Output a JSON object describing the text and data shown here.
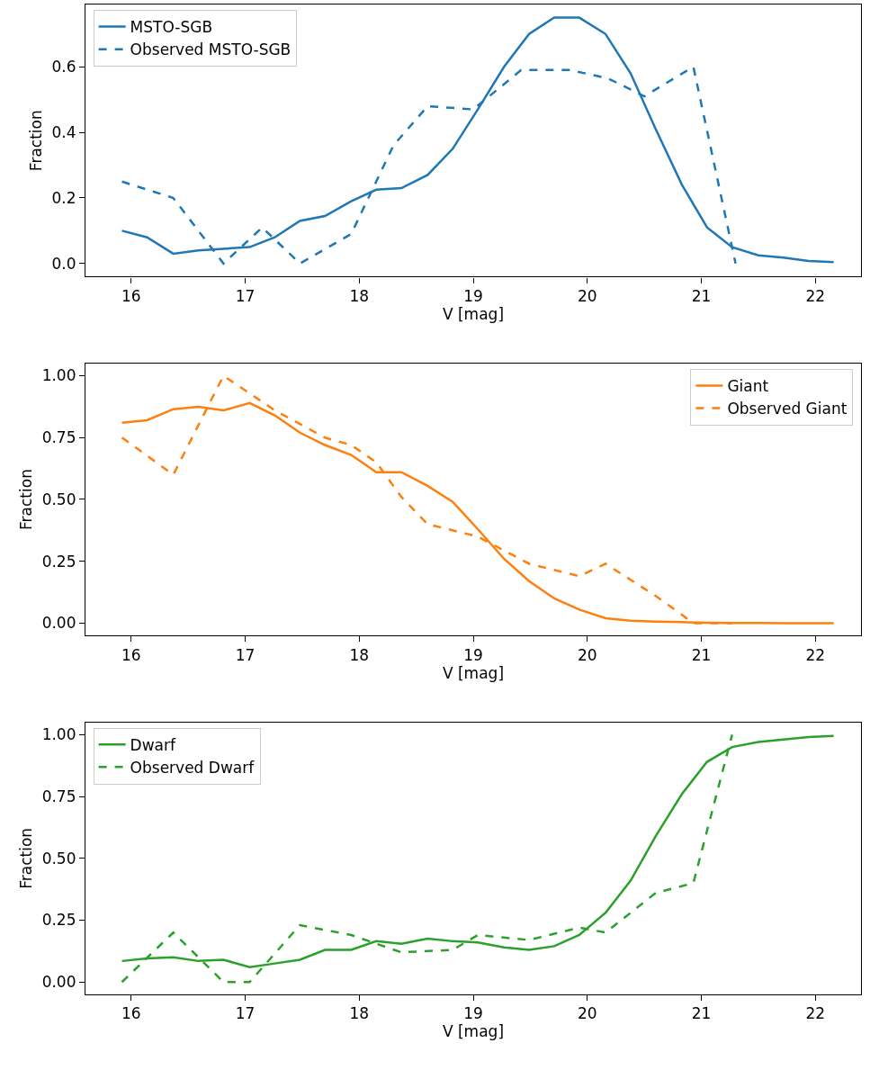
{
  "chart_data": [
    {
      "type": "line",
      "xlabel": "V [mag]",
      "ylabel": "Fraction",
      "xlim": [
        15.6,
        22.4
      ],
      "xticks": [
        16,
        17,
        18,
        19,
        20,
        21,
        22
      ],
      "ylim": [
        -0.04,
        0.79
      ],
      "yticks": [
        {
          "value": 0,
          "label": "0.0"
        },
        {
          "value": 0.2,
          "label": "0.2"
        },
        {
          "value": 0.4,
          "label": "0.4"
        },
        {
          "value": 0.6,
          "label": "0.6"
        }
      ],
      "legend": "top left",
      "x": [
        15.92,
        16.14,
        16.37,
        16.59,
        16.81,
        17.04,
        17.26,
        17.48,
        17.7,
        17.93,
        18.15,
        18.37,
        18.6,
        18.82,
        19.04,
        19.27,
        19.49,
        19.71,
        19.93,
        20.16,
        20.38,
        20.6,
        20.83,
        21.05,
        21.27,
        21.5,
        21.72,
        21.94,
        22.16
      ],
      "series": [
        {
          "name": "MSTO-SGB",
          "color": "#1f77b4",
          "line_style": "solid",
          "values": [
            0.1,
            0.08,
            0.03,
            0.04,
            0.045,
            0.05,
            0.08,
            0.13,
            0.145,
            0.19,
            0.225,
            0.23,
            0.27,
            0.35,
            0.47,
            0.6,
            0.7,
            0.75,
            0.75,
            0.7,
            0.58,
            0.41,
            0.24,
            0.11,
            0.05,
            0.025,
            0.018,
            0.008,
            0.004
          ]
        },
        {
          "name": "Observed MSTO-SGB",
          "color": "#1f77b4",
          "line_style": "dashed",
          "x": [
            15.92,
            16.37,
            16.81,
            17.15,
            17.48,
            17.93,
            18.3,
            18.6,
            19.0,
            19.42,
            19.85,
            20.18,
            20.5,
            20.93,
            21.3
          ],
          "values": [
            0.25,
            0.2,
            0.0,
            0.11,
            0.0,
            0.09,
            0.36,
            0.48,
            0.47,
            0.59,
            0.59,
            0.565,
            0.51,
            0.6,
            0.0
          ]
        }
      ]
    },
    {
      "type": "line",
      "xlabel": "V [mag]",
      "ylabel": "Fraction",
      "xlim": [
        15.6,
        22.4
      ],
      "xticks": [
        16,
        17,
        18,
        19,
        20,
        21,
        22
      ],
      "ylim": [
        -0.05,
        1.05
      ],
      "yticks": [
        {
          "value": 0,
          "label": "0.00"
        },
        {
          "value": 0.25,
          "label": "0.25"
        },
        {
          "value": 0.5,
          "label": "0.50"
        },
        {
          "value": 0.75,
          "label": "0.75"
        },
        {
          "value": 1,
          "label": "1.00"
        }
      ],
      "legend": "top right",
      "x": [
        15.92,
        16.14,
        16.37,
        16.59,
        16.81,
        17.04,
        17.26,
        17.48,
        17.7,
        17.93,
        18.15,
        18.37,
        18.6,
        18.82,
        19.04,
        19.27,
        19.49,
        19.71,
        19.93,
        20.16,
        20.38,
        20.6,
        20.83,
        21.05,
        21.27,
        21.5,
        21.72,
        21.94,
        22.16
      ],
      "series": [
        {
          "name": "Giant",
          "color": "#ff7f0e",
          "line_style": "solid",
          "values": [
            0.81,
            0.82,
            0.865,
            0.875,
            0.86,
            0.89,
            0.84,
            0.77,
            0.72,
            0.68,
            0.61,
            0.61,
            0.555,
            0.49,
            0.38,
            0.26,
            0.17,
            0.1,
            0.055,
            0.02,
            0.01,
            0.006,
            0.004,
            0.002,
            0.001,
            0.001,
            0.0,
            0.0,
            0.0
          ]
        },
        {
          "name": "Observed Giant",
          "color": "#ff7f0e",
          "line_style": "dashed",
          "x": [
            15.92,
            16.37,
            16.81,
            17.26,
            17.7,
            17.93,
            18.15,
            18.37,
            18.6,
            19.04,
            19.49,
            19.93,
            20.16,
            20.6,
            20.93,
            21.27
          ],
          "values": [
            0.75,
            0.6,
            1.0,
            0.86,
            0.75,
            0.72,
            0.65,
            0.51,
            0.4,
            0.35,
            0.24,
            0.19,
            0.24,
            0.11,
            0.0,
            0.0
          ]
        }
      ]
    },
    {
      "type": "line",
      "xlabel": "V [mag]",
      "ylabel": "Fraction",
      "xlim": [
        15.6,
        22.4
      ],
      "xticks": [
        16,
        17,
        18,
        19,
        20,
        21,
        22
      ],
      "ylim": [
        -0.05,
        1.05
      ],
      "yticks": [
        {
          "value": 0,
          "label": "0.00"
        },
        {
          "value": 0.25,
          "label": "0.25"
        },
        {
          "value": 0.5,
          "label": "0.50"
        },
        {
          "value": 0.75,
          "label": "0.75"
        },
        {
          "value": 1,
          "label": "1.00"
        }
      ],
      "legend": "top left",
      "x": [
        15.92,
        16.14,
        16.37,
        16.59,
        16.81,
        17.04,
        17.26,
        17.48,
        17.7,
        17.93,
        18.15,
        18.37,
        18.6,
        18.82,
        19.04,
        19.27,
        19.49,
        19.71,
        19.93,
        20.16,
        20.38,
        20.6,
        20.83,
        21.05,
        21.27,
        21.5,
        21.72,
        21.94,
        22.16
      ],
      "series": [
        {
          "name": "Dwarf",
          "color": "#2ca02c",
          "line_style": "solid",
          "values": [
            0.085,
            0.095,
            0.1,
            0.085,
            0.09,
            0.06,
            0.075,
            0.09,
            0.13,
            0.13,
            0.165,
            0.155,
            0.175,
            0.165,
            0.16,
            0.14,
            0.13,
            0.145,
            0.19,
            0.28,
            0.41,
            0.59,
            0.76,
            0.89,
            0.95,
            0.97,
            0.98,
            0.99,
            0.995
          ]
        },
        {
          "name": "Observed Dwarf",
          "color": "#2ca02c",
          "line_style": "dashed",
          "x": [
            15.92,
            16.37,
            16.81,
            17.04,
            17.48,
            17.93,
            18.37,
            18.82,
            19.04,
            19.49,
            19.93,
            20.16,
            20.6,
            20.93,
            21.27
          ],
          "values": [
            0.0,
            0.2,
            0.0,
            0.0,
            0.23,
            0.19,
            0.12,
            0.13,
            0.19,
            0.17,
            0.22,
            0.2,
            0.36,
            0.4,
            1.0
          ]
        }
      ]
    }
  ]
}
